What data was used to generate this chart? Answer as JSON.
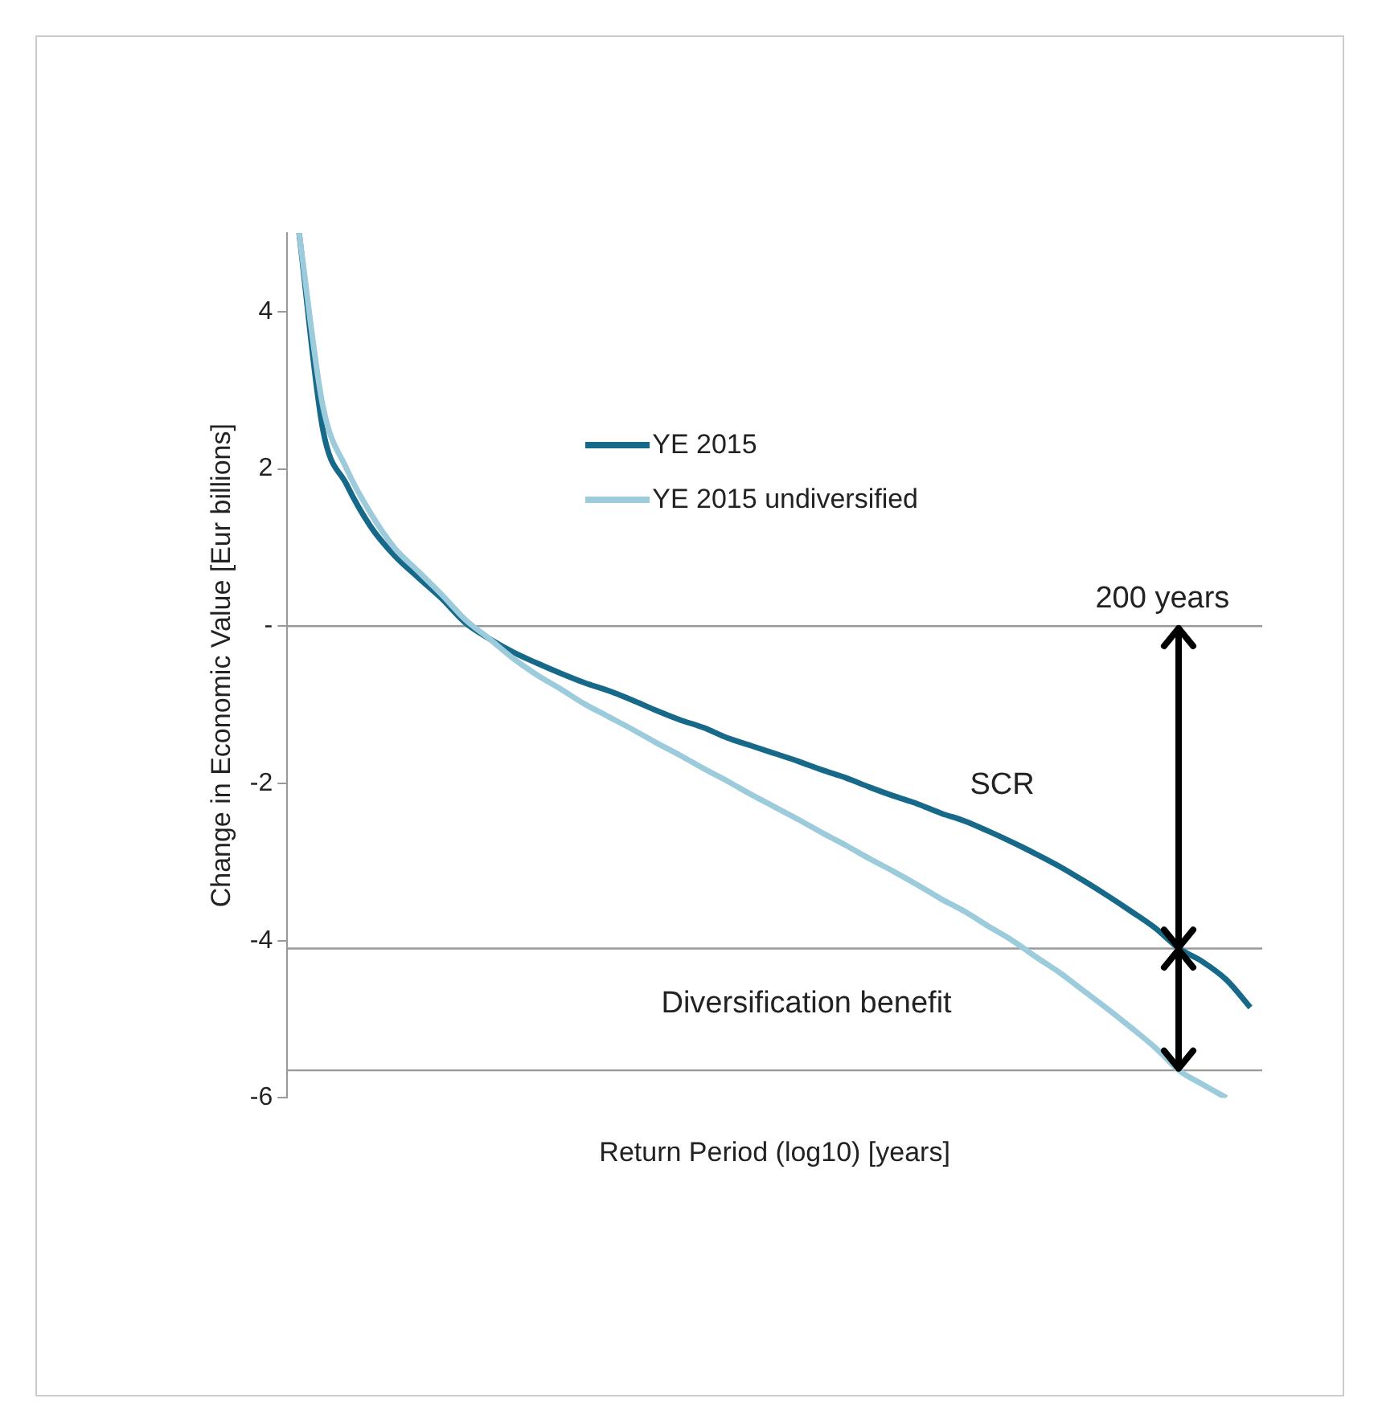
{
  "chart_data": {
    "type": "line",
    "xlabel": "Return Period (log10) [years]",
    "ylabel": "Change in Economic Value [Eur billions]",
    "categories": [
      null,
      null,
      null,
      null,
      null,
      null,
      null,
      null,
      null,
      null,
      null,
      null,
      null,
      null,
      null,
      null,
      null,
      null,
      null,
      null,
      null,
      null,
      null,
      null,
      null,
      null,
      null,
      null,
      null,
      null,
      null,
      null,
      null,
      null,
      null,
      null,
      null,
      null,
      null,
      null,
      null
    ],
    "series": [
      {
        "name": "YE 2015",
        "color": "#17698a",
        "values": [
          5,
          2.5,
          1.8,
          1.27,
          0.9,
          0.62,
          0.35,
          0.04,
          -0.16,
          -0.33,
          -0.47,
          -0.6,
          -0.72,
          -0.82,
          -0.94,
          -1.07,
          -1.19,
          -1.29,
          -1.42,
          -1.52,
          -1.62,
          -1.72,
          -1.83,
          -1.93,
          -2.05,
          -2.16,
          -2.26,
          -2.38,
          -2.48,
          -2.61,
          -2.75,
          -2.9,
          -3.06,
          -3.24,
          -3.43,
          -3.63,
          -3.84,
          -4.1,
          -4.27,
          -4.5,
          -4.85
        ]
      },
      {
        "name": "YE 2015 undiversified",
        "color": "#9ccbdc",
        "values": [
          5,
          2.8,
          2.0,
          1.44,
          1.0,
          0.7,
          0.4,
          0.08,
          -0.16,
          -0.41,
          -0.62,
          -0.8,
          -0.99,
          -1.15,
          -1.31,
          -1.48,
          -1.64,
          -1.81,
          -1.97,
          -2.14,
          -2.3,
          -2.46,
          -2.63,
          -2.79,
          -2.96,
          -3.12,
          -3.29,
          -3.47,
          -3.63,
          -3.82,
          -4.0,
          -4.21,
          -4.41,
          -4.64,
          -4.87,
          -5.11,
          -5.36,
          -5.65,
          -5.83,
          -6.0,
          null
        ]
      }
    ],
    "ylim": [
      -6,
      5
    ],
    "yticks": [
      4,
      2,
      {
        "value": 0,
        "label": "-"
      },
      -2,
      -4,
      -6
    ],
    "grid": false,
    "legend": "top left",
    "marker": "none",
    "line_style": "solid",
    "ref_lines": [
      {
        "axis": "y",
        "value": 0,
        "color": "#999999"
      },
      {
        "axis": "y",
        "value": -4.1,
        "color": "#999999"
      },
      {
        "axis": "y",
        "value": -5.65,
        "color": "#999999"
      }
    ],
    "annotations": [
      "200 years",
      "SCR",
      "Diversification benefit"
    ]
  }
}
